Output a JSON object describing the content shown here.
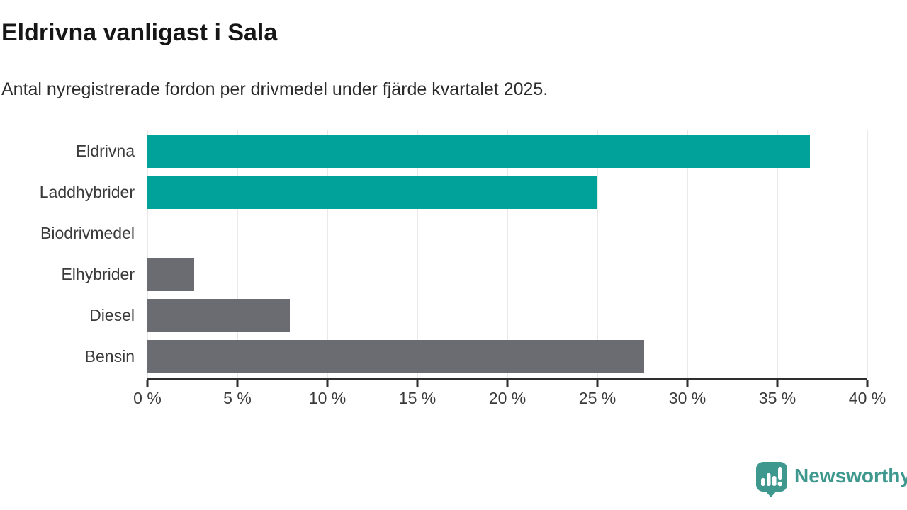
{
  "header": {
    "title": "Eldrivna vanligast i Sala",
    "subtitle": "Antal nyregistrerade fordon per drivmedel under fjärde kvartalet 2025."
  },
  "chart_data": {
    "type": "bar",
    "orientation": "horizontal",
    "title": "Eldrivna vanligast i Sala",
    "subtitle": "Antal nyregistrerade fordon per drivmedel under fjärde kvartalet 2025.",
    "categories": [
      "Eldrivna",
      "Laddhybrider",
      "Biodrivmedel",
      "Elhybrider",
      "Diesel",
      "Bensin"
    ],
    "values": [
      36.8,
      25.0,
      0,
      2.6,
      7.9,
      27.6
    ],
    "unit": "%",
    "bar_colors": [
      "#00a29a",
      "#00a29a",
      "#6b6b72",
      "#6b6b72",
      "#6b6b72",
      "#6b6b72"
    ],
    "highlight_color": "#00a29a",
    "default_color": "#6b6b72",
    "xlim": [
      0,
      40
    ],
    "x_tick_values": [
      0,
      5,
      10,
      15,
      20,
      25,
      30,
      35,
      40
    ],
    "x_tick_labels": [
      "0 %",
      "5 %",
      "10 %",
      "15 %",
      "20 %",
      "25 %",
      "30 %",
      "35 %",
      "40 %"
    ],
    "grid": true,
    "grid_color": "#e9e9e9",
    "axis_color": "#2e2e2e",
    "legend": "none"
  },
  "footer": {
    "brand": "Newsworthy",
    "logo_icon": "bar-chart-speech-bubble-icon",
    "brand_color": "#3e988e"
  }
}
